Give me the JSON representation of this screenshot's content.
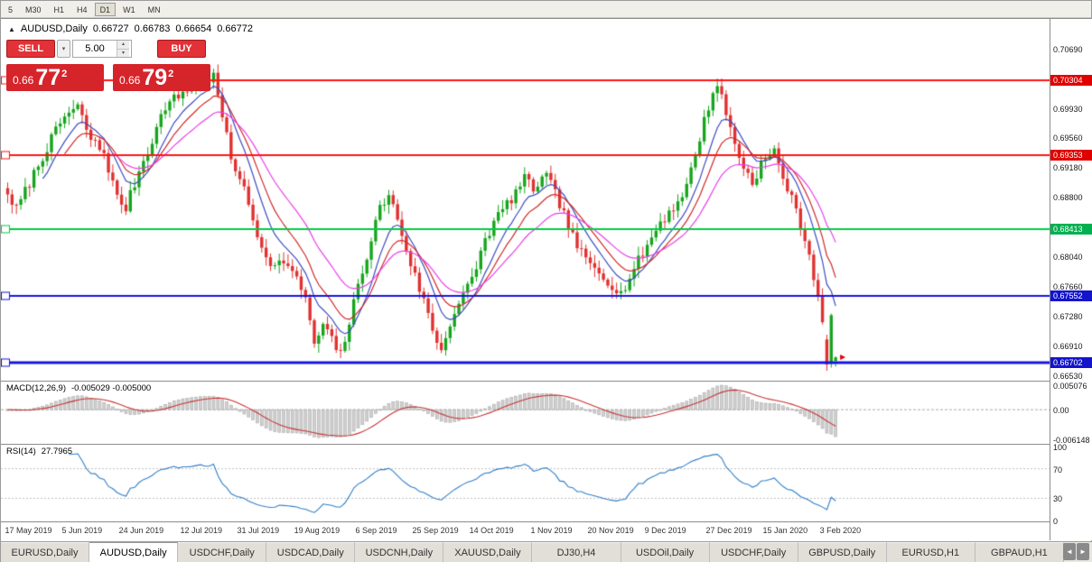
{
  "toolbar": {
    "timeframes": [
      {
        "label": "5",
        "active": false
      },
      {
        "label": "M30",
        "active": false
      },
      {
        "label": "H1",
        "active": false
      },
      {
        "label": "H4",
        "active": false
      },
      {
        "label": "D1",
        "active": true
      },
      {
        "label": "W1",
        "active": false
      },
      {
        "label": "MN",
        "active": false
      }
    ]
  },
  "title": {
    "marker": "▲",
    "symbol": "AUDUSD,Daily",
    "open": "0.66727",
    "high": "0.66783",
    "low": "0.66654",
    "close": "0.66772"
  },
  "trade_panel": {
    "sell_label": "SELL",
    "buy_label": "BUY",
    "volume": "5.00",
    "dropdown_icon": "▾",
    "spinner_up": "▴",
    "spinner_down": "▾",
    "bid": {
      "prefix": "0.66",
      "big": "77",
      "sup": "2"
    },
    "ask": {
      "prefix": "0.66",
      "big": "79",
      "sup": "2"
    }
  },
  "tabs": [
    {
      "label": "EURUSD,Daily",
      "active": false
    },
    {
      "label": "AUDUSD,Daily",
      "active": true
    },
    {
      "label": "USDCHF,Daily",
      "active": false
    },
    {
      "label": "USDCAD,Daily",
      "active": false
    },
    {
      "label": "USDCNH,Daily",
      "active": false
    },
    {
      "label": "XAUUSD,Daily",
      "active": false
    },
    {
      "label": "DJ30,H4",
      "active": false
    },
    {
      "label": "USDOil,Daily",
      "active": false
    },
    {
      "label": "USDCHF,Daily",
      "active": false
    },
    {
      "label": "GBPUSD,Daily",
      "active": false
    },
    {
      "label": "EURUSD,H1",
      "active": false
    },
    {
      "label": "GBPAUD,H1",
      "active": false
    }
  ],
  "tab_nav": {
    "left": "◄",
    "right": "►"
  },
  "chart_data": {
    "type": "candlestick",
    "symbol": "AUDUSD",
    "timeframe": "Daily",
    "candles_count": 190,
    "candle_up_color": "#16a51d",
    "candle_down_color": "#e03131",
    "y_axis": {
      "top": 0.71089,
      "bottom": 0.66474
    },
    "price_axis_labels": [
      {
        "text": "0.70690",
        "value": 0.7069
      },
      {
        "text": "0.69930",
        "value": 0.6993
      },
      {
        "text": "0.69560",
        "value": 0.6956
      },
      {
        "text": "0.69180",
        "value": 0.6918
      },
      {
        "text": "0.68800",
        "value": 0.688
      },
      {
        "text": "0.68040",
        "value": 0.6804
      },
      {
        "text": "0.67660",
        "value": 0.6766
      },
      {
        "text": "0.67280",
        "value": 0.6728
      },
      {
        "text": "0.66910",
        "value": 0.6691
      },
      {
        "text": "0.66530",
        "value": 0.6653
      }
    ],
    "price_badges": [
      {
        "text": "0.70304",
        "value": 0.70304,
        "color": "#e00000"
      },
      {
        "text": "0.69353",
        "value": 0.69353,
        "color": "#e00000"
      },
      {
        "text": "0.68413",
        "value": 0.68413,
        "color": "#00b050"
      },
      {
        "text": "0.67552",
        "value": 0.67552,
        "color": "#1414cc"
      },
      {
        "text": "0.66702",
        "value": 0.66702,
        "color": "#1414cc"
      }
    ],
    "hlines": [
      {
        "price": 0.70304,
        "color": "#ff1414",
        "width": 2
      },
      {
        "price": 0.69353,
        "color": "#ff1414",
        "width": 2
      },
      {
        "price": 0.68413,
        "color": "#00cc44",
        "width": 2
      },
      {
        "price": 0.67552,
        "color": "#1414e0",
        "width": 2
      },
      {
        "price": 0.66702,
        "color": "#1414e0",
        "width": 3
      }
    ],
    "x_labels": [
      {
        "text": "17 May 2019",
        "i": 0
      },
      {
        "text": "5 Jun 2019",
        "i": 13
      },
      {
        "text": "24 Jun 2019",
        "i": 26
      },
      {
        "text": "12 Jul 2019",
        "i": 40
      },
      {
        "text": "31 Jul 2019",
        "i": 53
      },
      {
        "text": "19 Aug 2019",
        "i": 66
      },
      {
        "text": "6 Sep 2019",
        "i": 80
      },
      {
        "text": "25 Sep 2019",
        "i": 93
      },
      {
        "text": "14 Oct 2019",
        "i": 106
      },
      {
        "text": "1 Nov 2019",
        "i": 120
      },
      {
        "text": "20 Nov 2019",
        "i": 133
      },
      {
        "text": "9 Dec 2019",
        "i": 146
      },
      {
        "text": "27 Dec 2019",
        "i": 160
      },
      {
        "text": "15 Jan 2020",
        "i": 173
      },
      {
        "text": "3 Feb 2020",
        "i": 186
      }
    ],
    "price_path": [
      [
        0,
        0.6885
      ],
      [
        2,
        0.6866
      ],
      [
        5,
        0.69
      ],
      [
        9,
        0.6945
      ],
      [
        13,
        0.6985
      ],
      [
        16,
        0.6996
      ],
      [
        19,
        0.6955
      ],
      [
        22,
        0.6938
      ],
      [
        25,
        0.688
      ],
      [
        27,
        0.6868
      ],
      [
        30,
        0.6915
      ],
      [
        33,
        0.6955
      ],
      [
        36,
        0.6998
      ],
      [
        40,
        0.7015
      ],
      [
        44,
        0.7028
      ],
      [
        47,
        0.7035
      ],
      [
        49,
        0.6985
      ],
      [
        51,
        0.693
      ],
      [
        53,
        0.6908
      ],
      [
        56,
        0.6852
      ],
      [
        58,
        0.6818
      ],
      [
        61,
        0.6792
      ],
      [
        63,
        0.6802
      ],
      [
        66,
        0.6775
      ],
      [
        68,
        0.6755
      ],
      [
        70,
        0.669
      ],
      [
        72,
        0.672
      ],
      [
        74,
        0.6698
      ],
      [
        76,
        0.668
      ],
      [
        78,
        0.6722
      ],
      [
        80,
        0.6768
      ],
      [
        83,
        0.6828
      ],
      [
        85,
        0.6868
      ],
      [
        87,
        0.6884
      ],
      [
        89,
        0.6854
      ],
      [
        91,
        0.6815
      ],
      [
        93,
        0.678
      ],
      [
        95,
        0.675
      ],
      [
        97,
        0.6712
      ],
      [
        99,
        0.6686
      ],
      [
        101,
        0.6722
      ],
      [
        103,
        0.6746
      ],
      [
        106,
        0.6776
      ],
      [
        109,
        0.6828
      ],
      [
        112,
        0.6858
      ],
      [
        115,
        0.688
      ],
      [
        118,
        0.6904
      ],
      [
        120,
        0.6893
      ],
      [
        123,
        0.6908
      ],
      [
        126,
        0.6874
      ],
      [
        129,
        0.683
      ],
      [
        132,
        0.68
      ],
      [
        135,
        0.6786
      ],
      [
        138,
        0.677
      ],
      [
        140,
        0.6758
      ],
      [
        143,
        0.679
      ],
      [
        146,
        0.682
      ],
      [
        149,
        0.685
      ],
      [
        152,
        0.6868
      ],
      [
        155,
        0.6895
      ],
      [
        158,
        0.6958
      ],
      [
        160,
        0.6998
      ],
      [
        162,
        0.7028
      ],
      [
        164,
        0.6988
      ],
      [
        166,
        0.695
      ],
      [
        168,
        0.692
      ],
      [
        170,
        0.69
      ],
      [
        172,
        0.6924
      ],
      [
        175,
        0.694
      ],
      [
        177,
        0.6908
      ],
      [
        179,
        0.6878
      ],
      [
        181,
        0.6848
      ],
      [
        183,
        0.6808
      ],
      [
        185,
        0.6756
      ],
      [
        186,
        0.6722
      ],
      [
        187,
        0.6668
      ],
      [
        188,
        0.6731
      ],
      [
        189,
        0.66772
      ]
    ],
    "key_candles": {
      "47": {
        "h": 0.70455
      },
      "162": {
        "h": 0.7033
      },
      "187": {
        "o": 0.67,
        "h": 0.6706,
        "l": 0.666,
        "c": 0.6668
      },
      "188": {
        "o": 0.6669,
        "h": 0.6733,
        "l": 0.6664,
        "c": 0.6731
      },
      "189": {
        "o": 0.66727,
        "h": 0.66783,
        "l": 0.66654,
        "c": 0.66772
      }
    },
    "ma_lines": [
      {
        "period": 8,
        "color": "#3b4cc0"
      },
      {
        "period": 13,
        "color": "#d02828"
      },
      {
        "period": 24,
        "color": "#e93ee9"
      }
    ],
    "macd": {
      "label": "MACD(12,26,9)",
      "display_values": "-0.005029 -0.005000",
      "fast": 12,
      "slow": 26,
      "signal": 9,
      "hist_color": "#cfcfcf",
      "hist_edge": "#ababab",
      "signal_color": "#c83232",
      "axis_labels": [
        {
          "text": "0.005076",
          "value": 0.005076
        },
        {
          "text": "0.00",
          "value": 0
        },
        {
          "text": "-0.006148",
          "value": -0.006148
        }
      ]
    },
    "rsi": {
      "label": "RSI(14)",
      "display_value": "27.7965",
      "period": 14,
      "color": "#2f7ec7",
      "levels": [
        70,
        30
      ],
      "axis_labels": [
        {
          "text": "100",
          "value": 100
        },
        {
          "text": "70",
          "value": 70
        },
        {
          "text": "30",
          "value": 30
        },
        {
          "text": "0",
          "value": 0
        }
      ]
    }
  }
}
